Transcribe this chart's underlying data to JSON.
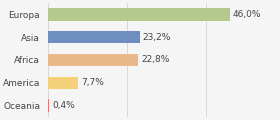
{
  "categories": [
    "Europa",
    "Asia",
    "Africa",
    "America",
    "Oceania"
  ],
  "values": [
    46.0,
    23.2,
    22.8,
    7.7,
    0.4
  ],
  "labels": [
    "46,0%",
    "23,2%",
    "22,8%",
    "7,7%",
    "0,4%"
  ],
  "bar_colors": [
    "#b5c98e",
    "#6e8ebf",
    "#e8b88a",
    "#f5d07a",
    "#e87878"
  ],
  "background_color": "#f5f5f5",
  "xlim": [
    0,
    58
  ],
  "label_fontsize": 6.5,
  "tick_fontsize": 6.5,
  "bar_height": 0.55
}
